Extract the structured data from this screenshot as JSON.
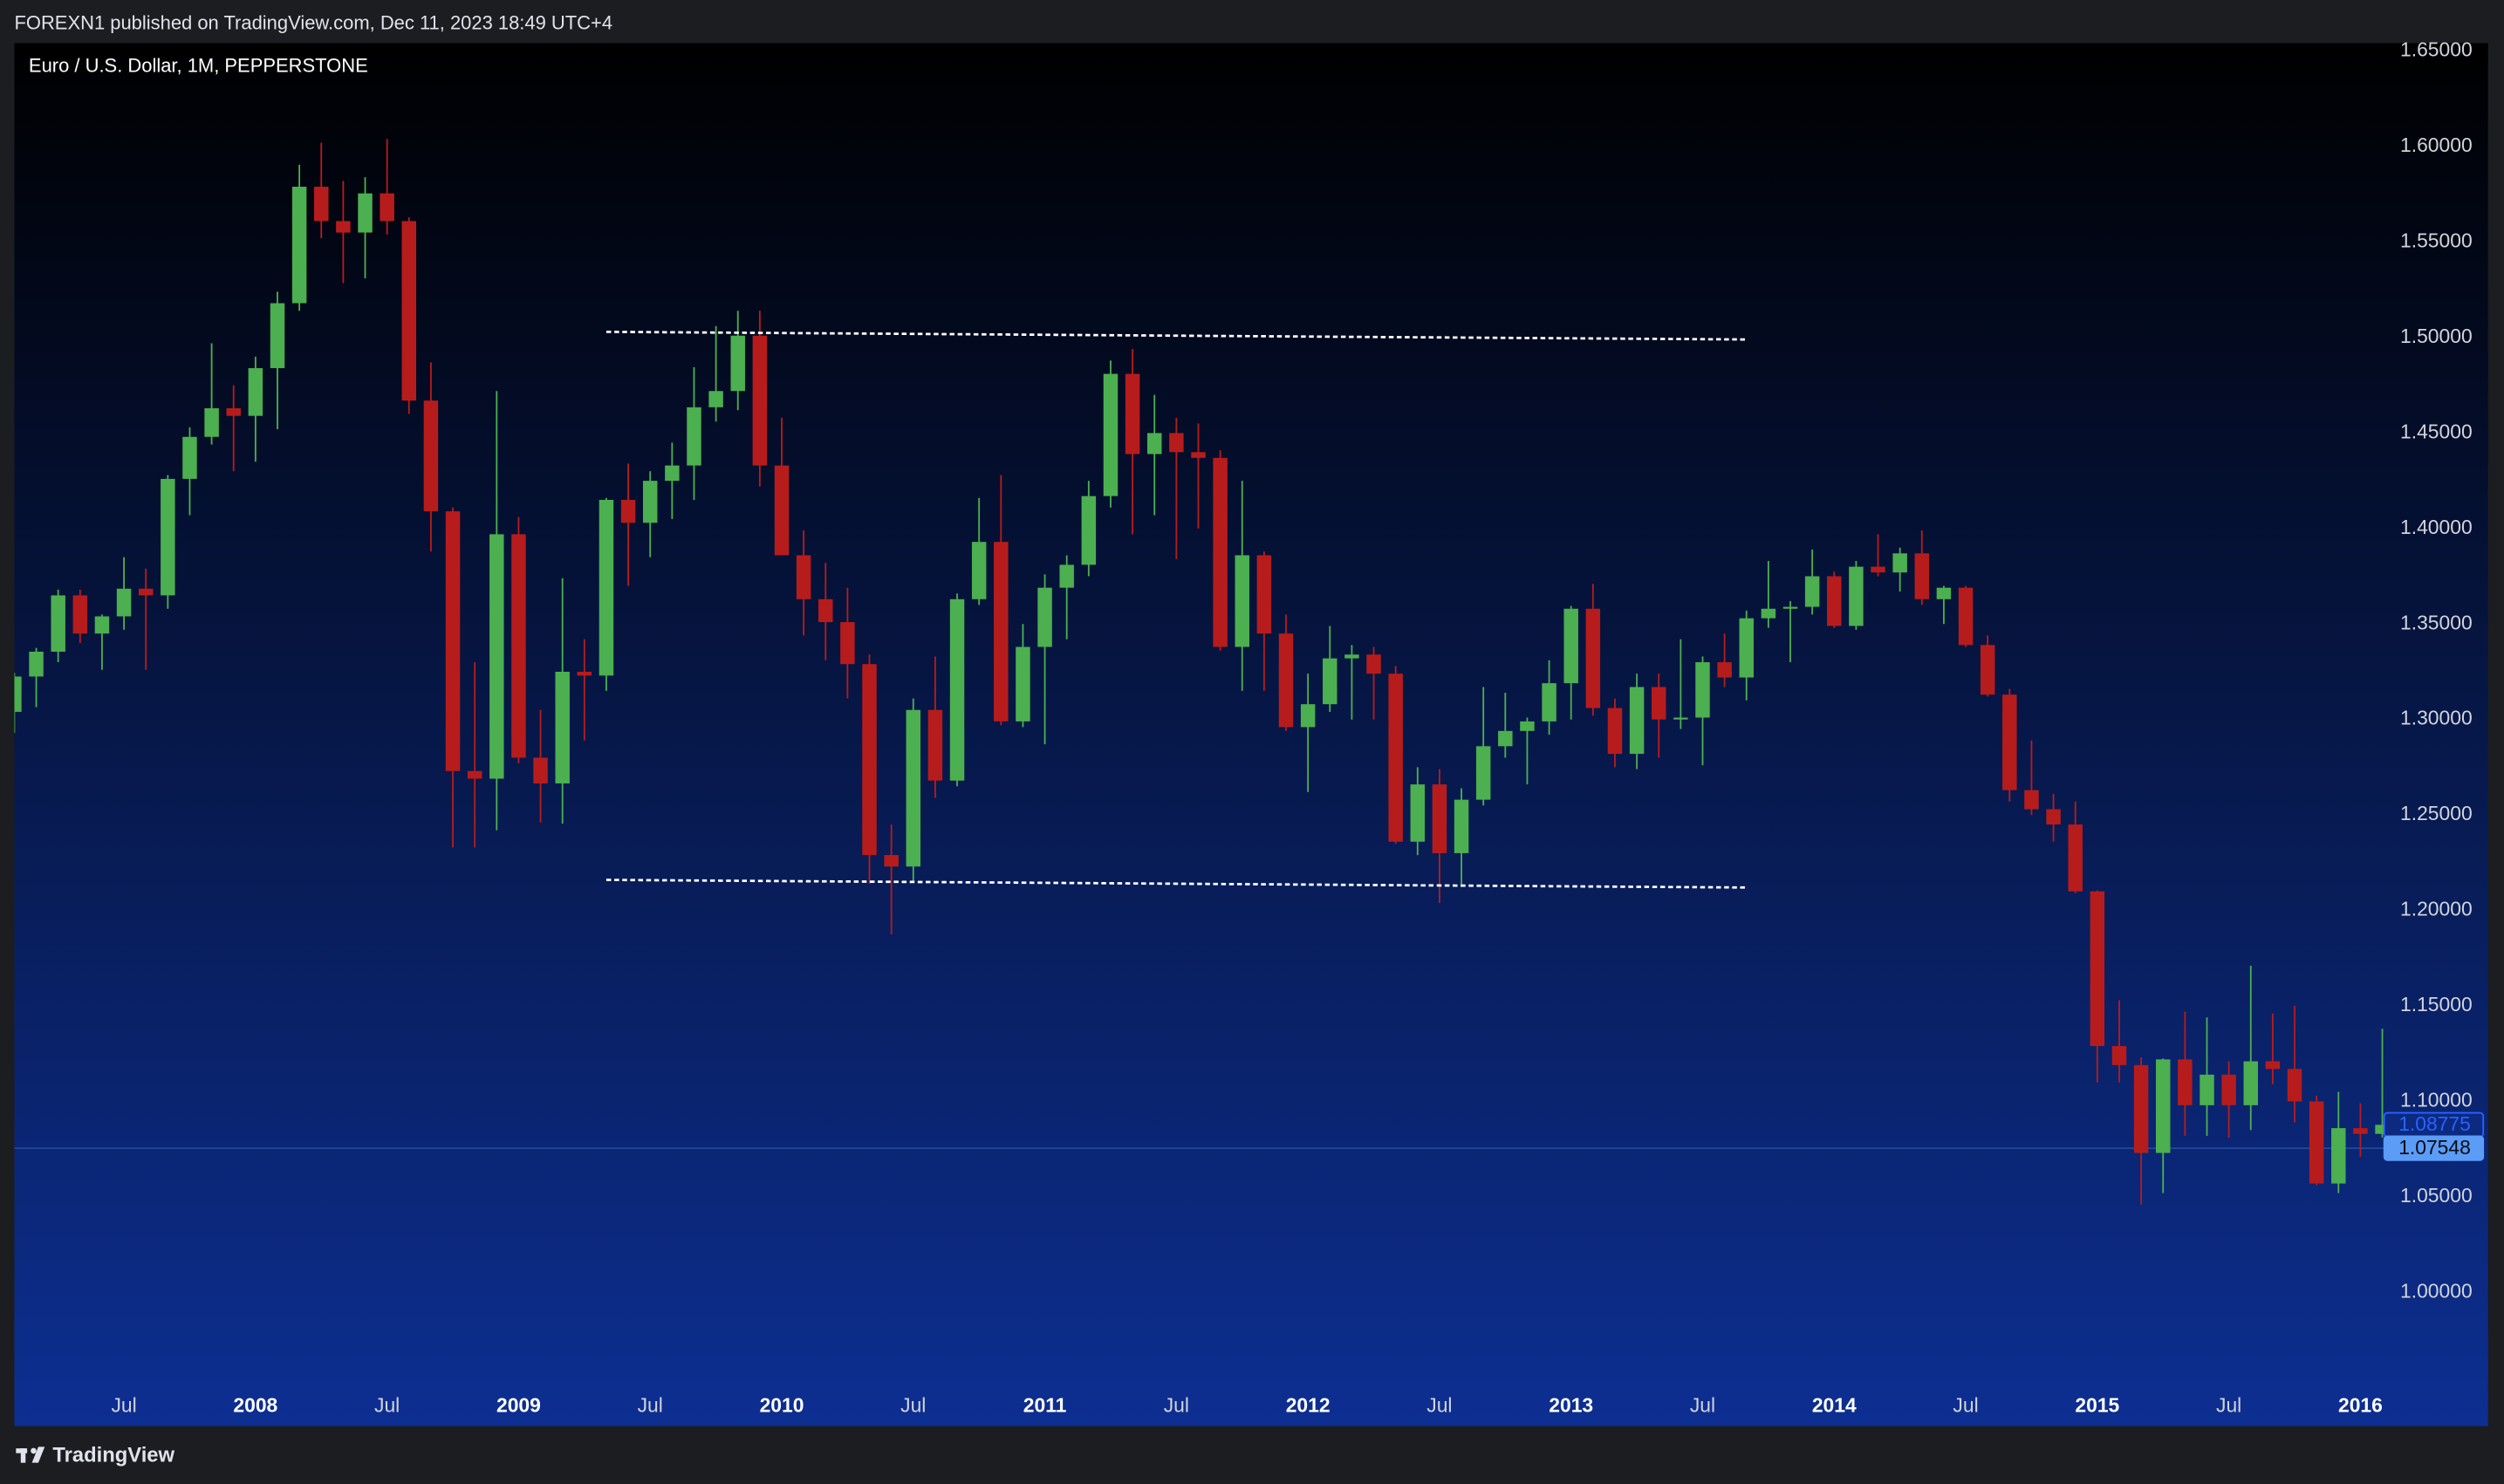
{
  "header": {
    "text": "FOREXN1 published on TradingView.com, Dec 11, 2023 18:49 UTC+4"
  },
  "footer": {
    "brand": "TradingView"
  },
  "chart_data": {
    "type": "candlestick",
    "title": "Euro / U.S. Dollar, 1M, PEPPERSTONE",
    "x": [
      "2007-02",
      "2007-03",
      "2007-04",
      "2007-05",
      "2007-06",
      "2007-07",
      "2007-08",
      "2007-09",
      "2007-10",
      "2007-11",
      "2007-12",
      "2008-01",
      "2008-02",
      "2008-03",
      "2008-04",
      "2008-05",
      "2008-06",
      "2008-07",
      "2008-08",
      "2008-09",
      "2008-10",
      "2008-11",
      "2008-12",
      "2009-01",
      "2009-02",
      "2009-03",
      "2009-04",
      "2009-05",
      "2009-06",
      "2009-07",
      "2009-08",
      "2009-09",
      "2009-10",
      "2009-11",
      "2009-12",
      "2010-01",
      "2010-02",
      "2010-03",
      "2010-04",
      "2010-05",
      "2010-06",
      "2010-07",
      "2010-08",
      "2010-09",
      "2010-10",
      "2010-11",
      "2010-12",
      "2011-01",
      "2011-02",
      "2011-03",
      "2011-04",
      "2011-05",
      "2011-06",
      "2011-07",
      "2011-08",
      "2011-09",
      "2011-10",
      "2011-11",
      "2011-12",
      "2012-01",
      "2012-02",
      "2012-03",
      "2012-04",
      "2012-05",
      "2012-06",
      "2012-07",
      "2012-08",
      "2012-09",
      "2012-10",
      "2012-11",
      "2012-12",
      "2013-01",
      "2013-02",
      "2013-03",
      "2013-04",
      "2013-05",
      "2013-06",
      "2013-07",
      "2013-08",
      "2013-09",
      "2013-10",
      "2013-11",
      "2013-12",
      "2014-01",
      "2014-02",
      "2014-03",
      "2014-04",
      "2014-05",
      "2014-06",
      "2014-07",
      "2014-08",
      "2014-09",
      "2014-10",
      "2014-11",
      "2014-12",
      "2015-01",
      "2015-02",
      "2015-03",
      "2015-04",
      "2015-05",
      "2015-06",
      "2015-07",
      "2015-08",
      "2015-09",
      "2015-10",
      "2015-11",
      "2015-12",
      "2016-01",
      "2016-02"
    ],
    "open": [
      1.304,
      1.3225,
      1.3355,
      1.365,
      1.345,
      1.354,
      1.3685,
      1.365,
      1.426,
      1.448,
      1.463,
      1.459,
      1.484,
      1.518,
      1.579,
      1.561,
      1.555,
      1.5755,
      1.561,
      1.467,
      1.409,
      1.273,
      1.269,
      1.397,
      1.28,
      1.2665,
      1.325,
      1.323,
      1.415,
      1.403,
      1.425,
      1.433,
      1.4635,
      1.472,
      1.501,
      1.433,
      1.386,
      1.363,
      1.351,
      1.329,
      1.229,
      1.223,
      1.305,
      1.268,
      1.363,
      1.393,
      1.299,
      1.338,
      1.369,
      1.381,
      1.417,
      1.481,
      1.439,
      1.45,
      1.44,
      1.437,
      1.338,
      1.386,
      1.345,
      1.296,
      1.308,
      1.332,
      1.334,
      1.324,
      1.236,
      1.266,
      1.23,
      1.258,
      1.286,
      1.294,
      1.299,
      1.319,
      1.358,
      1.306,
      1.282,
      1.317,
      1.3,
      1.301,
      1.33,
      1.322,
      1.353,
      1.358,
      1.359,
      1.375,
      1.349,
      1.38,
      1.377,
      1.387,
      1.363,
      1.369,
      1.339,
      1.313,
      1.263,
      1.253,
      1.245,
      1.21,
      1.129,
      1.119,
      1.073,
      1.122,
      1.098,
      1.114,
      1.098,
      1.121,
      1.117,
      1.1,
      1.057,
      1.086,
      1.083
    ],
    "high": [
      1.3245,
      1.3375,
      1.368,
      1.368,
      1.355,
      1.385,
      1.379,
      1.428,
      1.453,
      1.497,
      1.475,
      1.49,
      1.524,
      1.5905,
      1.602,
      1.582,
      1.584,
      1.604,
      1.563,
      1.487,
      1.411,
      1.33,
      1.472,
      1.406,
      1.305,
      1.374,
      1.342,
      1.416,
      1.434,
      1.43,
      1.445,
      1.4845,
      1.506,
      1.514,
      1.514,
      1.458,
      1.399,
      1.382,
      1.369,
      1.334,
      1.245,
      1.311,
      1.333,
      1.366,
      1.416,
      1.428,
      1.35,
      1.376,
      1.386,
      1.425,
      1.488,
      1.494,
      1.47,
      1.458,
      1.455,
      1.441,
      1.425,
      1.388,
      1.355,
      1.324,
      1.349,
      1.339,
      1.338,
      1.328,
      1.275,
      1.274,
      1.264,
      1.317,
      1.314,
      1.301,
      1.331,
      1.3595,
      1.371,
      1.311,
      1.324,
      1.324,
      1.342,
      1.333,
      1.345,
      1.357,
      1.383,
      1.362,
      1.389,
      1.3775,
      1.383,
      1.397,
      1.39,
      1.399,
      1.37,
      1.37,
      1.344,
      1.316,
      1.289,
      1.261,
      1.257,
      1.2105,
      1.153,
      1.123,
      1.1225,
      1.147,
      1.144,
      1.121,
      1.171,
      1.146,
      1.15,
      1.103,
      1.105,
      1.099,
      1.138
    ],
    "low": [
      1.293,
      1.3065,
      1.33,
      1.34,
      1.326,
      1.347,
      1.326,
      1.358,
      1.407,
      1.444,
      1.43,
      1.435,
      1.452,
      1.514,
      1.552,
      1.5285,
      1.531,
      1.554,
      1.46,
      1.388,
      1.233,
      1.233,
      1.242,
      1.277,
      1.246,
      1.2455,
      1.289,
      1.315,
      1.37,
      1.385,
      1.405,
      1.415,
      1.456,
      1.462,
      1.422,
      1.386,
      1.344,
      1.331,
      1.311,
      1.214,
      1.1875,
      1.215,
      1.259,
      1.265,
      1.36,
      1.297,
      1.296,
      1.287,
      1.342,
      1.375,
      1.411,
      1.397,
      1.407,
      1.384,
      1.4,
      1.336,
      1.315,
      1.315,
      1.294,
      1.262,
      1.304,
      1.3,
      1.3,
      1.235,
      1.229,
      1.204,
      1.213,
      1.255,
      1.28,
      1.266,
      1.292,
      1.3,
      1.302,
      1.275,
      1.274,
      1.28,
      1.295,
      1.276,
      1.317,
      1.31,
      1.348,
      1.33,
      1.355,
      1.348,
      1.347,
      1.375,
      1.367,
      1.36,
      1.35,
      1.338,
      1.312,
      1.257,
      1.25,
      1.236,
      1.209,
      1.11,
      1.11,
      1.046,
      1.052,
      1.082,
      1.082,
      1.081,
      1.085,
      1.109,
      1.089,
      1.056,
      1.052,
      1.071,
      1.081
    ],
    "close": [
      1.3225,
      1.3355,
      1.365,
      1.345,
      1.354,
      1.3685,
      1.365,
      1.426,
      1.448,
      1.463,
      1.459,
      1.484,
      1.518,
      1.579,
      1.561,
      1.555,
      1.5755,
      1.561,
      1.467,
      1.409,
      1.273,
      1.269,
      1.397,
      1.28,
      1.2665,
      1.325,
      1.323,
      1.415,
      1.403,
      1.425,
      1.433,
      1.4635,
      1.472,
      1.501,
      1.433,
      1.386,
      1.363,
      1.351,
      1.329,
      1.229,
      1.223,
      1.305,
      1.268,
      1.363,
      1.393,
      1.299,
      1.338,
      1.369,
      1.381,
      1.417,
      1.481,
      1.439,
      1.45,
      1.44,
      1.437,
      1.338,
      1.386,
      1.345,
      1.296,
      1.308,
      1.332,
      1.334,
      1.324,
      1.236,
      1.266,
      1.23,
      1.258,
      1.286,
      1.294,
      1.299,
      1.319,
      1.358,
      1.306,
      1.282,
      1.317,
      1.3,
      1.301,
      1.33,
      1.322,
      1.353,
      1.358,
      1.359,
      1.375,
      1.349,
      1.38,
      1.377,
      1.387,
      1.363,
      1.369,
      1.339,
      1.313,
      1.263,
      1.253,
      1.245,
      1.21,
      1.129,
      1.119,
      1.073,
      1.122,
      1.098,
      1.114,
      1.098,
      1.121,
      1.117,
      1.1,
      1.057,
      1.086,
      1.083,
      1.08775
    ],
    "up_color": "#4caf50",
    "down_color": "#b71c1c",
    "ylim": [
      0.93,
      1.6542
    ],
    "yticks": [
      {
        "value": 1.0,
        "label": "1.00000"
      },
      {
        "value": 1.05,
        "label": "1.05000"
      },
      {
        "value": 1.1,
        "label": "1.10000"
      },
      {
        "value": 1.15,
        "label": "1.15000"
      },
      {
        "value": 1.2,
        "label": "1.20000"
      },
      {
        "value": 1.25,
        "label": "1.25000"
      },
      {
        "value": 1.3,
        "label": "1.30000"
      },
      {
        "value": 1.35,
        "label": "1.35000"
      },
      {
        "value": 1.4,
        "label": "1.40000"
      },
      {
        "value": 1.45,
        "label": "1.45000"
      },
      {
        "value": 1.5,
        "label": "1.50000"
      },
      {
        "value": 1.55,
        "label": "1.55000"
      },
      {
        "value": 1.6,
        "label": "1.60000"
      },
      {
        "value": 1.65,
        "label": "1.65000"
      }
    ],
    "xticks": [
      {
        "value": "2007-07",
        "label": "Jul"
      },
      {
        "value": "2008-01",
        "label": "2008"
      },
      {
        "value": "2008-07",
        "label": "Jul"
      },
      {
        "value": "2009-01",
        "label": "2009"
      },
      {
        "value": "2009-07",
        "label": "Jul"
      },
      {
        "value": "2010-01",
        "label": "2010"
      },
      {
        "value": "2010-07",
        "label": "Jul"
      },
      {
        "value": "2011-01",
        "label": "2011"
      },
      {
        "value": "2011-07",
        "label": "Jul"
      },
      {
        "value": "2012-01",
        "label": "2012"
      },
      {
        "value": "2012-07",
        "label": "Jul"
      },
      {
        "value": "2013-01",
        "label": "2013"
      },
      {
        "value": "2013-07",
        "label": "Jul"
      },
      {
        "value": "2014-01",
        "label": "2014"
      },
      {
        "value": "2014-07",
        "label": "Jul"
      },
      {
        "value": "2015-01",
        "label": "2015"
      },
      {
        "value": "2015-07",
        "label": "Jul"
      },
      {
        "value": "2016-01",
        "label": "2016"
      }
    ],
    "lines": [
      {
        "x": [
          "2009-05",
          "2013-09"
        ],
        "y": [
          1.503,
          1.499
        ]
      },
      {
        "x": [
          "2009-05",
          "2013-09"
        ],
        "y": [
          1.216,
          1.212
        ]
      }
    ],
    "price_labels": [
      {
        "value": 1.08775,
        "label": "1.08775",
        "color": "#2962ff",
        "filled": false,
        "line": false
      },
      {
        "value": 1.07548,
        "label": "1.07548",
        "color": "#5b9cf6",
        "filled": true,
        "line": true
      }
    ]
  }
}
